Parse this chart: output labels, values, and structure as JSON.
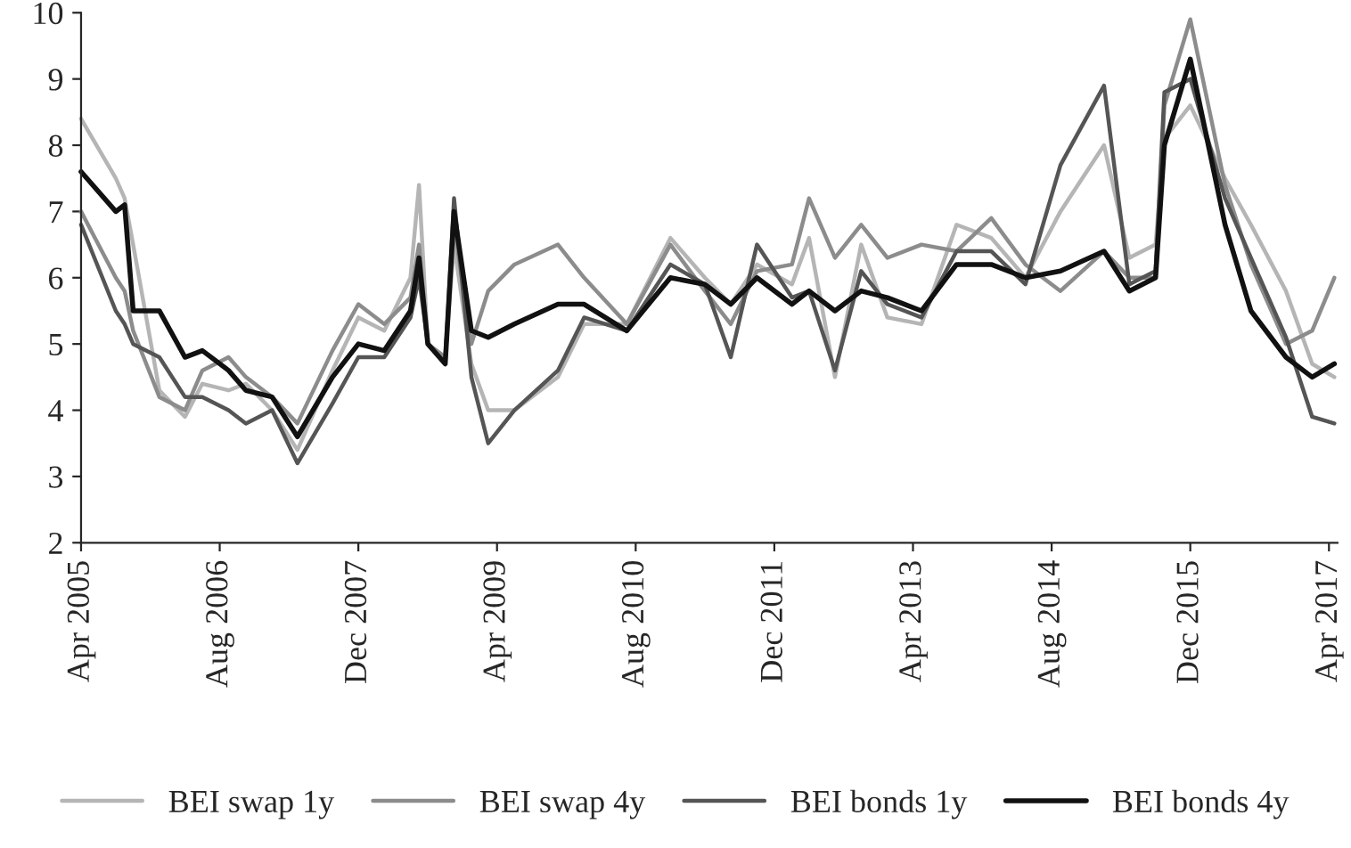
{
  "chart_data": {
    "type": "line",
    "x": [
      "2005-04",
      "2005-08",
      "2005-09",
      "2005-10",
      "2006-01",
      "2006-04",
      "2006-06",
      "2006-09",
      "2006-11",
      "2007-02",
      "2007-05",
      "2007-09",
      "2007-12",
      "2008-03",
      "2008-06",
      "2008-07",
      "2008-08",
      "2008-10",
      "2008-11",
      "2009-01",
      "2009-03",
      "2009-06",
      "2009-11",
      "2010-02",
      "2010-07",
      "2010-12",
      "2011-04",
      "2011-07",
      "2011-10",
      "2012-02",
      "2012-04",
      "2012-07",
      "2012-10",
      "2013-01",
      "2013-05",
      "2013-09",
      "2014-01",
      "2014-05",
      "2014-09",
      "2015-02",
      "2015-05",
      "2015-08",
      "2015-09",
      "2015-12",
      "2016-04",
      "2016-07",
      "2016-11",
      "2017-02",
      "2017-04-20"
    ],
    "series": [
      {
        "name": "BEI swap 1y",
        "color": "#b5b5b5",
        "values": [
          8.4,
          7.5,
          7.2,
          6.5,
          4.3,
          3.9,
          4.4,
          4.3,
          4.4,
          4.0,
          3.4,
          4.6,
          5.4,
          5.2,
          6.0,
          7.4,
          5.0,
          4.8,
          6.5,
          4.7,
          4.0,
          4.0,
          4.5,
          5.3,
          5.3,
          6.6,
          6.0,
          5.6,
          6.2,
          5.9,
          6.6,
          4.5,
          6.5,
          5.4,
          5.3,
          6.8,
          6.6,
          6.0,
          7.0,
          8.0,
          6.3,
          6.5,
          8.1,
          8.6,
          7.5,
          6.8,
          5.8,
          4.7,
          4.5
        ]
      },
      {
        "name": "BEI swap 4y",
        "color": "#8c8c8c",
        "values": [
          7.0,
          6.0,
          5.8,
          5.2,
          4.2,
          4.0,
          4.6,
          4.8,
          4.5,
          4.2,
          3.8,
          4.9,
          5.6,
          5.3,
          5.7,
          6.5,
          5.0,
          4.8,
          6.8,
          5.0,
          5.8,
          6.2,
          6.5,
          6.0,
          5.3,
          6.5,
          5.8,
          5.3,
          6.1,
          6.2,
          7.2,
          6.3,
          6.8,
          6.3,
          6.5,
          6.4,
          6.9,
          6.2,
          5.8,
          6.4,
          6.0,
          6.0,
          8.6,
          9.9,
          7.4,
          6.2,
          5.0,
          5.2,
          6.0
        ]
      },
      {
        "name": "BEI bonds 1y",
        "color": "#555555",
        "values": [
          6.8,
          5.5,
          5.3,
          5.0,
          4.8,
          4.2,
          4.2,
          4.0,
          3.8,
          4.0,
          3.2,
          4.1,
          4.8,
          4.8,
          5.4,
          6.0,
          5.0,
          4.7,
          7.2,
          4.5,
          3.5,
          4.0,
          4.6,
          5.4,
          5.2,
          6.2,
          5.9,
          4.8,
          6.5,
          5.7,
          5.8,
          4.6,
          6.1,
          5.6,
          5.4,
          6.4,
          6.4,
          5.9,
          7.7,
          8.9,
          5.9,
          6.1,
          8.8,
          9.0,
          7.2,
          6.3,
          5.1,
          3.9,
          3.8
        ]
      },
      {
        "name": "BEI bonds 4y",
        "color": "#111111",
        "values": [
          7.6,
          7.0,
          7.1,
          5.5,
          5.5,
          4.8,
          4.9,
          4.6,
          4.3,
          4.2,
          3.6,
          4.5,
          5.0,
          4.9,
          5.5,
          6.3,
          5.0,
          4.7,
          7.0,
          5.2,
          5.1,
          5.3,
          5.6,
          5.6,
          5.2,
          6.0,
          5.9,
          5.6,
          6.0,
          5.6,
          5.8,
          5.5,
          5.8,
          5.7,
          5.5,
          6.2,
          6.2,
          6.0,
          6.1,
          6.4,
          5.8,
          6.0,
          8.0,
          9.3,
          6.8,
          5.5,
          4.8,
          4.5,
          4.7
        ]
      }
    ],
    "xlim": [
      "2005-04",
      "2017-05"
    ],
    "xticks": [
      {
        "value": "2005-04",
        "label": "Apr 2005"
      },
      {
        "value": "2006-08",
        "label": "Aug 2006"
      },
      {
        "value": "2007-12",
        "label": "Dec 2007"
      },
      {
        "value": "2009-04",
        "label": "Apr 2009"
      },
      {
        "value": "2010-08",
        "label": "Aug 2010"
      },
      {
        "value": "2011-12",
        "label": "Dec 2011"
      },
      {
        "value": "2013-04",
        "label": "Apr 2013"
      },
      {
        "value": "2014-08",
        "label": "Aug 2014"
      },
      {
        "value": "2015-12",
        "label": "Dec 2015"
      },
      {
        "value": "2017-04",
        "label": "Apr 2017"
      }
    ],
    "ylim": [
      2,
      10
    ],
    "yticks": [
      2,
      3,
      4,
      5,
      6,
      7,
      8,
      9,
      10
    ],
    "grid": false,
    "legend": "bottom",
    "marker": "none",
    "line_style": "solid"
  }
}
